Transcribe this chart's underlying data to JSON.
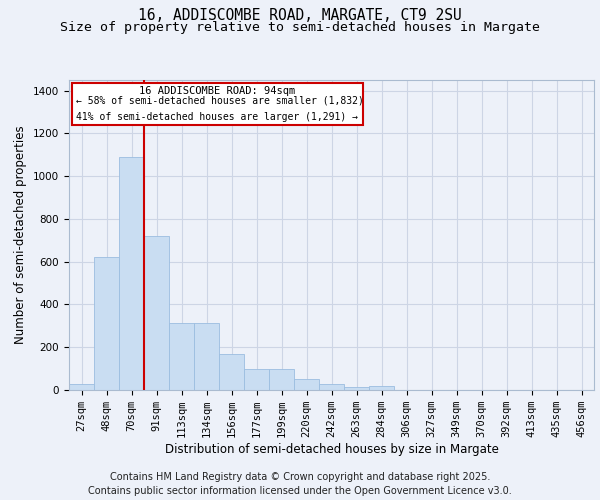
{
  "title1": "16, ADDISCOMBE ROAD, MARGATE, CT9 2SU",
  "title2": "Size of property relative to semi-detached houses in Margate",
  "xlabel": "Distribution of semi-detached houses by size in Margate",
  "ylabel": "Number of semi-detached properties",
  "categories": [
    "27sqm",
    "48sqm",
    "70sqm",
    "91sqm",
    "113sqm",
    "134sqm",
    "156sqm",
    "177sqm",
    "199sqm",
    "220sqm",
    "242sqm",
    "263sqm",
    "284sqm",
    "306sqm",
    "327sqm",
    "349sqm",
    "370sqm",
    "392sqm",
    "413sqm",
    "435sqm",
    "456sqm"
  ],
  "values": [
    30,
    620,
    1090,
    720,
    315,
    315,
    170,
    100,
    100,
    50,
    30,
    15,
    20,
    0,
    0,
    0,
    0,
    0,
    0,
    0,
    0
  ],
  "bar_color": "#c9ddf2",
  "bar_edge_color": "#9bbde0",
  "red_line_color": "#cc0000",
  "annotation_title": "16 ADDISCOMBE ROAD: 94sqm",
  "annotation_line1": "← 58% of semi-detached houses are smaller (1,832)",
  "annotation_line2": "41% of semi-detached houses are larger (1,291) →",
  "ylim": [
    0,
    1450
  ],
  "yticks": [
    0,
    200,
    400,
    600,
    800,
    1000,
    1200,
    1400
  ],
  "footer1": "Contains HM Land Registry data © Crown copyright and database right 2025.",
  "footer2": "Contains public sector information licensed under the Open Government Licence v3.0.",
  "bg_color": "#edf1f9",
  "plot_bg_color": "#edf1f9",
  "grid_color": "#cdd5e5",
  "title_fontsize": 10.5,
  "subtitle_fontsize": 9.5,
  "axis_label_fontsize": 8.5,
  "tick_fontsize": 7.5,
  "ann_fontsize": 7.5,
  "footer_fontsize": 7.0
}
